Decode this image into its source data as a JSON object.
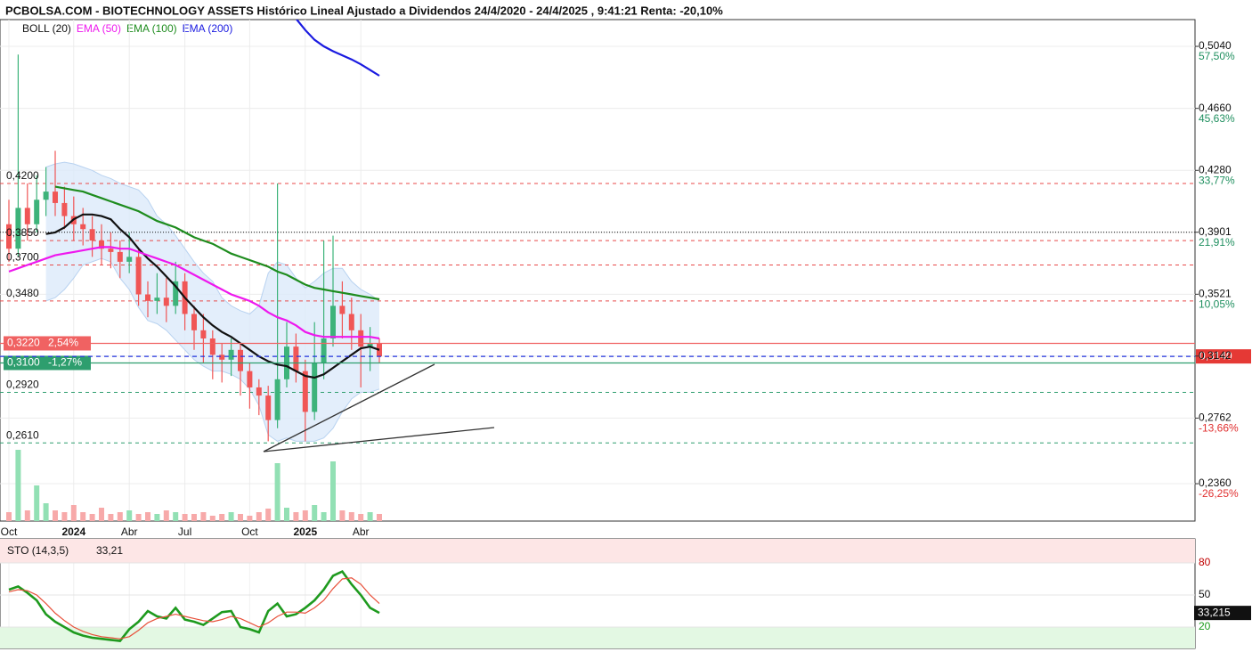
{
  "title": "PCBOLSA.COM - BIOTECHNOLOGY ASSETS Histórico Lineal Ajustado a Dividendos 24/4/2020 - 24/4/2025 , 9:41:21 Renta: -20,10%",
  "chart_data": [
    {
      "type": "candlestick",
      "categories": [
        "Oct",
        null,
        null,
        null,
        null,
        null,
        null,
        "2024",
        null,
        null,
        null,
        null,
        null,
        "Abr",
        null,
        null,
        null,
        null,
        null,
        "Jul",
        null,
        null,
        null,
        null,
        null,
        null,
        "Oct",
        null,
        null,
        null,
        null,
        null,
        "2025",
        null,
        null,
        null,
        null,
        null,
        "Abr",
        null,
        null
      ],
      "open": [
        0.395,
        0.38,
        0.405,
        0.395,
        0.41,
        0.415,
        0.408,
        0.4,
        0.395,
        0.392,
        0.385,
        0.38,
        0.378,
        0.372,
        0.375,
        0.352,
        0.348,
        0.35,
        0.345,
        0.36,
        0.34,
        0.33,
        0.325,
        0.315,
        0.312,
        0.318,
        0.305,
        0.295,
        0.29,
        0.275,
        0.3,
        0.32,
        0.305,
        0.28,
        0.31,
        0.325,
        0.345,
        0.34,
        0.33,
        0.32,
        0.322
      ],
      "high": [
        0.41,
        0.499,
        0.42,
        0.425,
        0.43,
        0.44,
        0.418,
        0.412,
        0.405,
        0.4,
        0.395,
        0.39,
        0.385,
        0.39,
        0.38,
        0.36,
        0.365,
        0.362,
        0.372,
        0.365,
        0.345,
        0.34,
        0.33,
        0.322,
        0.325,
        0.322,
        0.31,
        0.3,
        0.296,
        0.42,
        0.335,
        0.328,
        0.312,
        0.335,
        0.385,
        0.388,
        0.36,
        0.35,
        0.34,
        0.332,
        0.325
      ],
      "low": [
        0.372,
        0.375,
        0.385,
        0.39,
        0.4,
        0.4,
        0.392,
        0.385,
        0.382,
        0.375,
        0.37,
        0.368,
        0.362,
        0.365,
        0.345,
        0.338,
        0.34,
        0.335,
        0.34,
        0.33,
        0.318,
        0.31,
        0.3,
        0.298,
        0.302,
        0.29,
        0.282,
        0.278,
        0.262,
        0.27,
        0.295,
        0.298,
        0.262,
        0.275,
        0.3,
        0.32,
        0.325,
        0.318,
        0.295,
        0.305,
        0.31
      ],
      "close": [
        0.38,
        0.405,
        0.395,
        0.41,
        0.415,
        0.408,
        0.4,
        0.395,
        0.392,
        0.385,
        0.38,
        0.378,
        0.372,
        0.375,
        0.352,
        0.348,
        0.35,
        0.345,
        0.36,
        0.34,
        0.33,
        0.325,
        0.315,
        0.312,
        0.318,
        0.305,
        0.295,
        0.29,
        0.275,
        0.3,
        0.32,
        0.305,
        0.28,
        0.31,
        0.325,
        0.345,
        0.34,
        0.33,
        0.32,
        0.322,
        0.314
      ],
      "volume": [
        10,
        80,
        12,
        40,
        20,
        12,
        10,
        18,
        10,
        8,
        15,
        8,
        10,
        12,
        8,
        10,
        8,
        12,
        10,
        8,
        8,
        10,
        6,
        8,
        10,
        8,
        6,
        10,
        14,
        65,
        15,
        10,
        12,
        18,
        10,
        67,
        12,
        10,
        8,
        10,
        8
      ],
      "volume_lim": [
        0,
        100
      ],
      "up_color": "#3db37a",
      "down_color": "#f05656",
      "volume_up_color": "#92e0b4",
      "volume_down_color": "#f7a9a9",
      "series": [
        {
          "name": "BOLL (20)",
          "color": "#111111",
          "values": [
            null,
            null,
            null,
            null,
            0.389,
            0.39,
            0.393,
            0.398,
            0.401,
            0.401,
            0.4,
            0.398,
            0.392,
            0.387,
            0.38,
            0.374,
            0.369,
            0.363,
            0.357,
            0.35,
            0.344,
            0.338,
            0.333,
            0.329,
            0.326,
            0.322,
            0.318,
            0.314,
            0.311,
            0.309,
            0.308,
            0.305,
            0.302,
            0.301,
            0.303,
            0.307,
            0.311,
            0.315,
            0.319,
            0.32,
            0.318
          ],
          "upper": [
            null,
            null,
            null,
            null,
            0.43,
            0.432,
            0.433,
            0.432,
            0.43,
            0.428,
            0.425,
            0.423,
            0.42,
            0.418,
            0.416,
            0.41,
            0.4,
            0.395,
            0.388,
            0.38,
            0.372,
            0.365,
            0.36,
            0.35,
            0.345,
            0.342,
            0.34,
            0.345,
            0.365,
            0.372,
            0.37,
            0.362,
            0.356,
            0.36,
            0.365,
            0.368,
            0.368,
            0.36,
            0.355,
            0.352,
            0.348
          ],
          "lower": [
            null,
            null,
            null,
            null,
            0.348,
            0.35,
            0.355,
            0.362,
            0.37,
            0.372,
            0.374,
            0.372,
            0.362,
            0.355,
            0.344,
            0.336,
            0.334,
            0.33,
            0.324,
            0.318,
            0.312,
            0.308,
            0.305,
            0.305,
            0.303,
            0.3,
            0.294,
            0.284,
            0.266,
            0.262,
            0.264,
            0.262,
            0.262,
            0.262,
            0.264,
            0.27,
            0.28,
            0.288,
            0.292,
            0.292,
            0.294
          ],
          "band_color": "#dceafa"
        },
        {
          "name": "EMA (50)",
          "color": "#ee18ee",
          "values": [
            0.366,
            0.368,
            0.37,
            0.372,
            0.374,
            0.376,
            0.377,
            0.378,
            0.379,
            0.38,
            0.381,
            0.381,
            0.38,
            0.38,
            0.378,
            0.376,
            0.374,
            0.372,
            0.37,
            0.367,
            0.364,
            0.361,
            0.358,
            0.355,
            0.352,
            0.35,
            0.348,
            0.345,
            0.341,
            0.338,
            0.336,
            0.333,
            0.329,
            0.327,
            0.326,
            0.326,
            0.326,
            0.326,
            0.326,
            0.326,
            0.325
          ]
        },
        {
          "name": "EMA (100)",
          "color": "#1e8c1e",
          "values": [
            null,
            null,
            null,
            null,
            null,
            0.418,
            0.417,
            0.416,
            0.415,
            0.413,
            0.411,
            0.409,
            0.407,
            0.405,
            0.403,
            0.4,
            0.397,
            0.395,
            0.393,
            0.39,
            0.387,
            0.385,
            0.383,
            0.38,
            0.377,
            0.375,
            0.373,
            0.371,
            0.369,
            0.366,
            0.364,
            0.361,
            0.358,
            0.356,
            0.355,
            0.354,
            0.353,
            0.352,
            0.351,
            0.35,
            0.349
          ]
        },
        {
          "name": "EMA (200)",
          "color": "#1a1ae0",
          "values": [
            null,
            null,
            null,
            null,
            null,
            null,
            null,
            null,
            null,
            null,
            null,
            null,
            null,
            null,
            null,
            null,
            null,
            null,
            null,
            null,
            null,
            null,
            null,
            null,
            null,
            null,
            null,
            null,
            null,
            null,
            null,
            0.521,
            0.514,
            0.508,
            0.504,
            0.501,
            0.4985,
            0.496,
            0.493,
            0.4895,
            0.486
          ]
        }
      ],
      "ylim": [
        0.2131,
        0.5204
      ],
      "yticks": [
        {
          "value": 0.504,
          "label": "0,5040"
        },
        {
          "value": 0.466,
          "label": "0,4660"
        },
        {
          "value": 0.428,
          "label": "0,4280"
        },
        {
          "value": 0.3901,
          "label": "0,3901"
        },
        {
          "value": 0.3521,
          "label": "0,3521"
        },
        {
          "value": 0.3142,
          "label": "0,3142"
        },
        {
          "value": 0.2762,
          "label": "0,2762"
        },
        {
          "value": 0.236,
          "label": "0,2360"
        }
      ],
      "y2lim": [
        -33.41,
        62.63
      ],
      "y2ticks": [
        {
          "value": 57.5,
          "label": "57,50%"
        },
        {
          "value": 45.63,
          "label": "45,63%"
        },
        {
          "value": 33.77,
          "label": "33,77%"
        },
        {
          "value": 21.91,
          "label": "21,91%"
        },
        {
          "value": 10.05,
          "label": "10,05%"
        },
        {
          "value": -13.66,
          "label": "-13,66%"
        },
        {
          "value": -26.25,
          "label": "-26,25%"
        }
      ],
      "y2tick_colors": [
        "#1f8f5f",
        "#1f8f5f",
        "#1f8f5f",
        "#1f8f5f",
        "#1f8f5f",
        "#e03030",
        "#e03030"
      ],
      "levels": [
        {
          "value": 0.42,
          "label": "0,4200",
          "color": "#e84a4a",
          "style": "dashed"
        },
        {
          "value": 0.3901,
          "color": "#111111",
          "style": "dotted"
        },
        {
          "value": 0.385,
          "label": "0,3850",
          "color": "#e84a4a",
          "style": "dashed"
        },
        {
          "value": 0.37,
          "label": "0,3700",
          "color": "#e84a4a",
          "style": "dashed"
        },
        {
          "value": 0.348,
          "label": "0,3480",
          "color": "#e84a4a",
          "style": "dashed"
        },
        {
          "value": 0.292,
          "label": "0,2920",
          "color": "#2e9e6e",
          "style": "dashed"
        },
        {
          "value": 0.261,
          "label": "0,2610",
          "color": "#2e9e6e",
          "style": "dashed"
        }
      ],
      "price_markers": [
        {
          "value": 0.322,
          "label": "0,3220",
          "pct_label": "2,54%",
          "color": "#f06262"
        },
        {
          "value": 0.31,
          "label": "0,3100",
          "pct_label": "-1,27%",
          "color": "#2e9e6e"
        }
      ],
      "last_price": {
        "value": 0.314,
        "label": "0,3140",
        "line_color": "#2233dd",
        "box_color": "#e53935"
      }
    },
    {
      "type": "line",
      "title": "STO (14,3,5)",
      "last_label": "33,21",
      "last_box_label": "33,215",
      "ylim": [
        0,
        102.5
      ],
      "yticks": [
        80,
        50,
        20
      ],
      "ytick_colors": [
        "#c00000",
        "#111111",
        "#1a9a1a"
      ],
      "bands": [
        {
          "from": 80,
          "to": 102.5,
          "color": "#fde6e6"
        },
        {
          "from": 0,
          "to": 20,
          "color": "#e3f8e3"
        }
      ],
      "series": [
        {
          "color": "#1e9a1e",
          "width": 2.6,
          "values": [
            55,
            58,
            52,
            45,
            32,
            25,
            20,
            15,
            12,
            10,
            9,
            8,
            7,
            18,
            25,
            35,
            30,
            28,
            38,
            27,
            25,
            22,
            28,
            34,
            35,
            20,
            18,
            15,
            35,
            42,
            30,
            32,
            38,
            45,
            55,
            68,
            72,
            60,
            50,
            38,
            33.215
          ]
        },
        {
          "color": "#e8503a",
          "width": 1.2,
          "values": [
            53,
            55,
            54,
            50,
            42,
            33,
            26,
            20,
            16,
            13,
            11,
            10,
            9,
            11,
            17,
            24,
            28,
            30,
            32,
            30,
            28,
            26,
            25,
            27,
            30,
            28,
            24,
            20,
            24,
            30,
            34,
            34,
            33,
            38,
            45,
            56,
            65,
            66,
            60,
            50,
            42
          ]
        }
      ]
    }
  ]
}
